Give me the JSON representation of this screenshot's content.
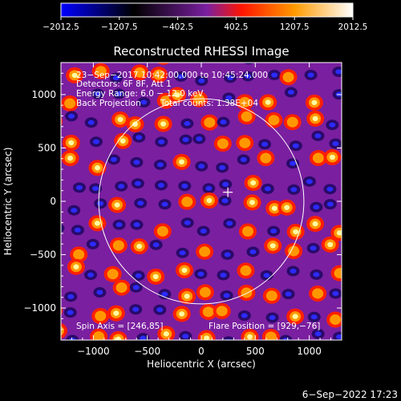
{
  "colorbar": {
    "ticks": [
      "-2012.5",
      "-1207.5",
      "-402.5",
      "402.5",
      "1207.5",
      "2012.5"
    ],
    "colors": [
      "#0000ff",
      "#000000",
      "#7a1fa0",
      "#ff1500",
      "#ff9a00",
      "#ffffff"
    ]
  },
  "chart_data": {
    "type": "heatmap",
    "title": "Reconstructed RHESSI Image",
    "xlabel": "Heliocentric X (arcsec)",
    "ylabel": "Heliocentric Y (arcsec)",
    "xlim": [
      -1300,
      1300
    ],
    "ylim": [
      -1300,
      1300
    ],
    "xticks": [
      -1000,
      -500,
      0,
      500,
      1000
    ],
    "yticks": [
      -1000,
      -500,
      0,
      500,
      1000
    ],
    "xtick_labels": [
      "−1000",
      "−500",
      "0",
      "500",
      "1000"
    ],
    "ytick_labels": [
      "−1000",
      "−500",
      "0",
      "500",
      "1000"
    ],
    "value_range": [
      -2012.5,
      2012.5
    ],
    "annotations": [
      "23−Sep−2017 10:42:00.000 to 10:45:24.000",
      "Detectors: 6F 8F, Att 1",
      "Energy Range: 6.0 − 12.0 keV",
      "Back Projection",
      "Total counts: 1.38E+04",
      "Spin Axis = [246,85]",
      "Flare Position = [929,−76]"
    ],
    "solar_limb_radius": 950,
    "marker": [
      246,
      85
    ]
  },
  "footer": {
    "date": "6−Sep−2022 17:23"
  }
}
